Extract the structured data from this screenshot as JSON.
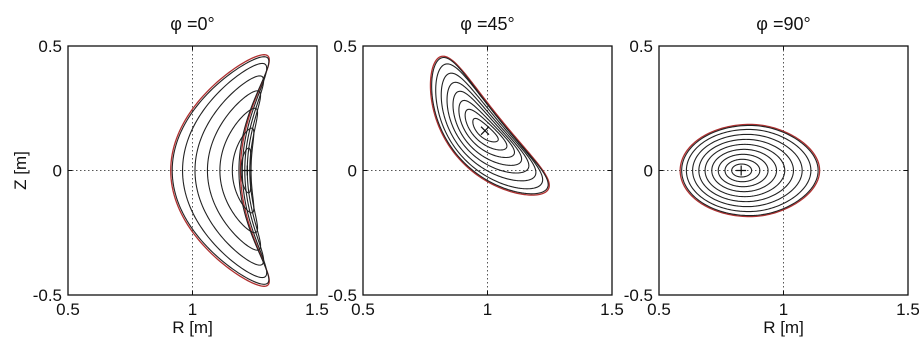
{
  "chart_data": [
    {
      "type": "line",
      "title": "φ =0°",
      "xlabel": "R [m]",
      "ylabel": "Z [m]",
      "xlim": [
        0.5,
        1.5
      ],
      "ylim": [
        -0.5,
        0.5
      ],
      "xticks": [
        "0.5",
        "1",
        "1.5"
      ],
      "yticks": [
        "0.5",
        "0",
        "-0.5"
      ],
      "grid": "dotted lines at R = 1 and Z = 0",
      "magnetic_axis": [
        1.22,
        0.0
      ],
      "axis_marker": "+",
      "shape": "bean",
      "outer_boundary_color": "#b03030",
      "surface_color": "#222222",
      "surfaces": [
        {
          "r_min": 1.03,
          "r_max": 1.31,
          "z_half": 0.465,
          "crescent": 0.235
        },
        {
          "r_min": 1.06,
          "r_max": 1.3,
          "z_half": 0.43,
          "crescent": 0.2
        },
        {
          "r_min": 1.09,
          "r_max": 1.29,
          "z_half": 0.38,
          "crescent": 0.16
        },
        {
          "r_min": 1.12,
          "r_max": 1.28,
          "z_half": 0.32,
          "crescent": 0.12
        },
        {
          "r_min": 1.15,
          "r_max": 1.27,
          "z_half": 0.25,
          "crescent": 0.08
        },
        {
          "r_min": 1.18,
          "r_max": 1.255,
          "z_half": 0.17,
          "crescent": 0.04
        },
        {
          "r_min": 1.2,
          "r_max": 1.24,
          "z_half": 0.09,
          "crescent": 0.01
        }
      ]
    },
    {
      "type": "line",
      "title": "φ =45°",
      "xlabel": "",
      "ylabel": "",
      "xlim": [
        0.5,
        1.5
      ],
      "ylim": [
        -0.5,
        0.5
      ],
      "xticks": [
        "0.5",
        "1",
        "1.5"
      ],
      "yticks": [
        "0.5",
        "0",
        "-0.5"
      ],
      "grid": "dotted lines at R = 1 and Z = 0",
      "magnetic_axis": [
        0.99,
        0.16
      ],
      "axis_marker": "x",
      "shape": "tilted",
      "outer_boundary_color": "#b03030",
      "surface_color": "#222222",
      "surfaces": [
        {
          "a": 0.345,
          "b": 0.115,
          "tilt_deg": -51,
          "bend": 0.075
        },
        {
          "a": 0.31,
          "b": 0.105,
          "tilt_deg": -51,
          "bend": 0.065
        },
        {
          "a": 0.27,
          "b": 0.093,
          "tilt_deg": -50,
          "bend": 0.055
        },
        {
          "a": 0.23,
          "b": 0.08,
          "tilt_deg": -49,
          "bend": 0.045
        },
        {
          "a": 0.19,
          "b": 0.067,
          "tilt_deg": -48,
          "bend": 0.035
        },
        {
          "a": 0.15,
          "b": 0.053,
          "tilt_deg": -46,
          "bend": 0.025
        },
        {
          "a": 0.11,
          "b": 0.039,
          "tilt_deg": -44,
          "bend": 0.015
        },
        {
          "a": 0.065,
          "b": 0.024,
          "tilt_deg": -42,
          "bend": 0.008
        }
      ]
    },
    {
      "type": "line",
      "title": "φ =90°",
      "xlabel": "R [m]",
      "ylabel": "",
      "xlim": [
        0.5,
        1.5
      ],
      "ylim": [
        -0.5,
        0.5
      ],
      "xticks": [
        "0.5",
        "1",
        "1.5"
      ],
      "yticks": [
        "0.5",
        "0",
        "-0.5"
      ],
      "grid": "dotted lines at R = 1 and Z = 0",
      "magnetic_axis": [
        0.83,
        0.0
      ],
      "axis_marker": "+",
      "shape": "oval",
      "outer_boundary_color": "#b03030",
      "surface_color": "#222222",
      "surfaces": [
        {
          "a": 0.28,
          "b": 0.185,
          "shift": 0.035,
          "flat": 0.18
        },
        {
          "a": 0.25,
          "b": 0.165,
          "shift": 0.03,
          "flat": 0.16
        },
        {
          "a": 0.22,
          "b": 0.145,
          "shift": 0.025,
          "flat": 0.14
        },
        {
          "a": 0.19,
          "b": 0.125,
          "shift": 0.02,
          "flat": 0.12
        },
        {
          "a": 0.16,
          "b": 0.105,
          "shift": 0.015,
          "flat": 0.1
        },
        {
          "a": 0.13,
          "b": 0.085,
          "shift": 0.012,
          "flat": 0.08
        },
        {
          "a": 0.1,
          "b": 0.065,
          "shift": 0.008,
          "flat": 0.06
        },
        {
          "a": 0.07,
          "b": 0.045,
          "shift": 0.005,
          "flat": 0.04
        },
        {
          "a": 0.04,
          "b": 0.026,
          "shift": 0.002,
          "flat": 0.02
        }
      ]
    }
  ]
}
